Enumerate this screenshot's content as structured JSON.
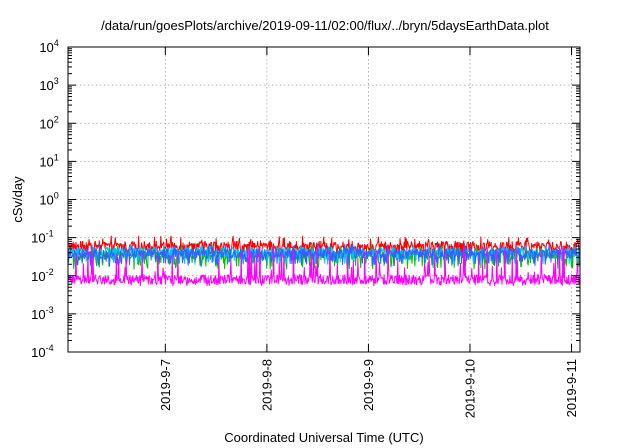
{
  "chart_data": {
    "type": "line",
    "title": "/data/run/goesPlots/archive/2019-09-11/02:00/flux/../bryn/5daysEarthData.plot",
    "xlabel": "Coordinated Universal Time (UTC)",
    "ylabel": "cSv/day",
    "yscale": "log",
    "ylim": [
      0.0001,
      10000
    ],
    "y_ticks": [
      {
        "base": "10",
        "exp": "-4",
        "value": 0.0001
      },
      {
        "base": "10",
        "exp": "-3",
        "value": 0.001
      },
      {
        "base": "10",
        "exp": "-2",
        "value": 0.01
      },
      {
        "base": "10",
        "exp": "-1",
        "value": 0.1
      },
      {
        "base": "10",
        "exp": "0",
        "value": 1
      },
      {
        "base": "10",
        "exp": "1",
        "value": 10
      },
      {
        "base": "10",
        "exp": "2",
        "value": 100
      },
      {
        "base": "10",
        "exp": "3",
        "value": 1000
      },
      {
        "base": "10",
        "exp": "4",
        "value": 10000
      }
    ],
    "xlim": [
      "2019-09-06 01:00",
      "2019-09-11 02:00"
    ],
    "x_ticks": [
      "2019-9-7",
      "2019-9-8",
      "2019-9-9",
      "2019-9-10",
      "2019-9-11"
    ],
    "x_tick_dates": [
      "2019-09-07",
      "2019-09-08",
      "2019-09-09",
      "2019-09-10",
      "2019-09-11"
    ],
    "grid": true,
    "series": [
      {
        "color": "#ff0000",
        "median": 0.06,
        "low": 0.035,
        "high": 0.11
      },
      {
        "color": "#00c000",
        "median": 0.035,
        "low": 0.015,
        "high": 0.06
      },
      {
        "color": "#00c0ff",
        "median": 0.042,
        "low": 0.02,
        "high": 0.065
      },
      {
        "color": "#3060ff",
        "median": 0.038,
        "low": 0.018,
        "high": 0.07
      },
      {
        "color": "#ff00ff",
        "median": 0.008,
        "low": 0.0055,
        "high": 0.06
      }
    ]
  }
}
